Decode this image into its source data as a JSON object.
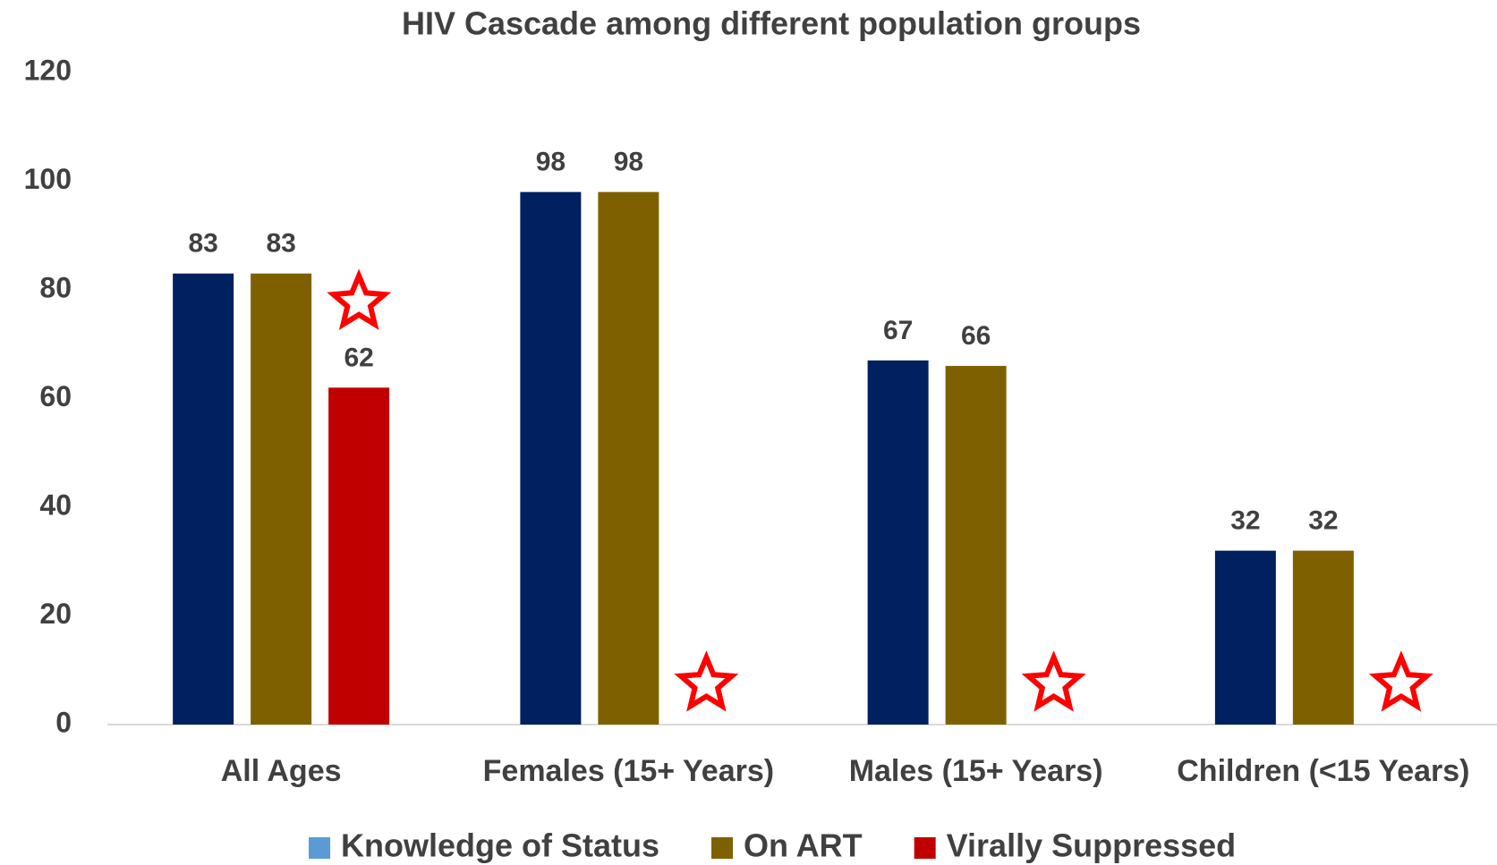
{
  "chart_data": {
    "type": "bar",
    "title": "HIV Cascade among different population groups",
    "categories": [
      "All Ages",
      "Females (15+ Years)",
      "Males (15+ Years)",
      "Children (<15 Years)"
    ],
    "series": [
      {
        "name": "Knowledge of Status",
        "color": "#002060",
        "legend_color": "#5b9bd5",
        "values": [
          83,
          98,
          67,
          32
        ]
      },
      {
        "name": "On ART",
        "color": "#7f6000",
        "values": [
          83,
          98,
          66,
          32
        ]
      },
      {
        "name": "Virally Suppressed",
        "color": "#c00000",
        "values": [
          62,
          null,
          null,
          null
        ]
      }
    ],
    "ylim": [
      0,
      120
    ],
    "yticks": [
      0,
      20,
      40,
      60,
      80,
      100,
      120
    ],
    "grid": false,
    "legend": "bottom"
  }
}
